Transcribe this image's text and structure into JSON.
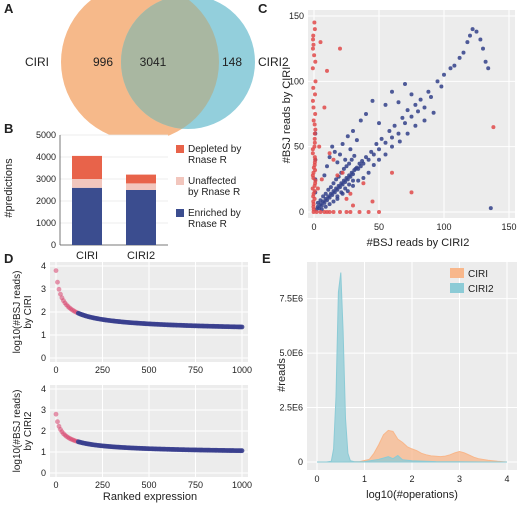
{
  "chart_data": [
    {
      "panel": "A",
      "type": "venn",
      "sets": [
        {
          "name": "CIRI",
          "color": "#f6b98a",
          "only": 996
        },
        {
          "name": "CIRI2",
          "color": "#93cfdc",
          "only": 148
        }
      ],
      "overlap": 3041,
      "overlap_color": "#a9b7a1"
    },
    {
      "panel": "B",
      "type": "bar",
      "stacked": true,
      "categories": [
        "CIRI",
        "CIRI2"
      ],
      "series": [
        {
          "name": "Enriched by\nRnase R",
          "color": "#3b4d8f",
          "values": [
            2600,
            2500
          ]
        },
        {
          "name": "Unaffected\nby Rnase R",
          "color": "#f2c6bd",
          "values": [
            400,
            300
          ]
        },
        {
          "name": "Depleted by\nRnase R",
          "color": "#e8634a",
          "values": [
            1050,
            400
          ]
        }
      ],
      "legend_order": [
        2,
        1,
        0
      ],
      "ylabel": "#predictions",
      "ylim": [
        0,
        5000
      ],
      "yticks": [
        0,
        1000,
        2000,
        3000,
        4000,
        5000
      ]
    },
    {
      "panel": "C",
      "type": "scatter",
      "xlabel": "#BSJ reads by CIRI2",
      "ylabel": "#BSJ reads by CIRI",
      "xlim": [
        0,
        150
      ],
      "ylim": [
        0,
        150
      ],
      "xticks": [
        0,
        50,
        100,
        150
      ],
      "yticks": [
        0,
        50,
        100,
        150
      ],
      "colors": {
        "blue": "#33418a",
        "red": "#e04a4a"
      },
      "blue_points": [
        [
          2,
          2
        ],
        [
          3,
          4
        ],
        [
          4,
          3
        ],
        [
          5,
          6
        ],
        [
          6,
          5
        ],
        [
          7,
          8
        ],
        [
          8,
          7
        ],
        [
          9,
          10
        ],
        [
          10,
          9
        ],
        [
          11,
          12
        ],
        [
          12,
          11
        ],
        [
          13,
          14
        ],
        [
          14,
          13
        ],
        [
          15,
          16
        ],
        [
          16,
          15
        ],
        [
          17,
          18
        ],
        [
          18,
          17
        ],
        [
          19,
          20
        ],
        [
          20,
          19
        ],
        [
          21,
          22
        ],
        [
          22,
          21
        ],
        [
          23,
          24
        ],
        [
          24,
          23
        ],
        [
          25,
          26
        ],
        [
          26,
          25
        ],
        [
          27,
          28
        ],
        [
          28,
          27
        ],
        [
          29,
          30
        ],
        [
          30,
          29
        ],
        [
          31,
          32
        ],
        [
          32,
          33
        ],
        [
          33,
          34
        ],
        [
          34,
          33
        ],
        [
          35,
          37
        ],
        [
          36,
          35
        ],
        [
          37,
          39
        ],
        [
          38,
          37
        ],
        [
          40,
          42
        ],
        [
          42,
          40
        ],
        [
          44,
          46
        ],
        [
          46,
          44
        ],
        [
          48,
          52
        ],
        [
          50,
          48
        ],
        [
          52,
          56
        ],
        [
          55,
          53
        ],
        [
          58,
          62
        ],
        [
          60,
          57
        ],
        [
          62,
          66
        ],
        [
          65,
          60
        ],
        [
          68,
          72
        ],
        [
          70,
          68
        ],
        [
          72,
          78
        ],
        [
          75,
          73
        ],
        [
          78,
          82
        ],
        [
          80,
          77
        ],
        [
          82,
          86
        ],
        [
          85,
          80
        ],
        [
          88,
          92
        ],
        [
          90,
          88
        ],
        [
          95,
          100
        ],
        [
          98,
          96
        ],
        [
          100,
          105
        ],
        [
          105,
          110
        ],
        [
          108,
          112
        ],
        [
          112,
          118
        ],
        [
          115,
          122
        ],
        [
          118,
          130
        ],
        [
          120,
          135
        ],
        [
          122,
          140
        ],
        [
          125,
          138
        ],
        [
          128,
          132
        ],
        [
          130,
          125
        ],
        [
          132,
          115
        ],
        [
          134,
          110
        ],
        [
          136,
          3
        ],
        [
          8,
          28
        ],
        [
          10,
          35
        ],
        [
          12,
          42
        ],
        [
          14,
          50
        ],
        [
          16,
          46
        ],
        [
          18,
          38
        ],
        [
          20,
          44
        ],
        [
          22,
          52
        ],
        [
          24,
          40
        ],
        [
          26,
          58
        ],
        [
          28,
          48
        ],
        [
          30,
          62
        ],
        [
          33,
          55
        ],
        [
          36,
          70
        ],
        [
          40,
          75
        ],
        [
          45,
          85
        ],
        [
          50,
          68
        ],
        [
          55,
          82
        ],
        [
          60,
          92
        ],
        [
          65,
          84
        ],
        [
          70,
          98
        ],
        [
          75,
          90
        ],
        [
          18,
          10
        ],
        [
          22,
          14
        ],
        [
          26,
          16
        ],
        [
          30,
          20
        ],
        [
          34,
          24
        ],
        [
          38,
          26
        ],
        [
          42,
          30
        ],
        [
          46,
          36
        ],
        [
          50,
          40
        ],
        [
          55,
          44
        ],
        [
          60,
          50
        ],
        [
          66,
          54
        ],
        [
          72,
          60
        ],
        [
          78,
          66
        ],
        [
          85,
          70
        ],
        [
          92,
          76
        ],
        [
          3,
          7
        ],
        [
          5,
          9
        ],
        [
          7,
          12
        ],
        [
          9,
          14
        ],
        [
          11,
          17
        ],
        [
          13,
          19
        ],
        [
          15,
          22
        ],
        [
          17,
          25
        ],
        [
          19,
          27
        ],
        [
          21,
          30
        ],
        [
          23,
          33
        ],
        [
          25,
          35
        ],
        [
          27,
          37
        ],
        [
          29,
          40
        ],
        [
          31,
          43
        ],
        [
          6,
          2
        ],
        [
          9,
          4
        ],
        [
          12,
          6
        ],
        [
          15,
          8
        ],
        [
          18,
          12
        ],
        [
          21,
          15
        ],
        [
          24,
          18
        ],
        [
          27,
          21
        ],
        [
          30,
          24
        ],
        [
          1,
          60
        ],
        [
          1,
          40
        ],
        [
          1,
          25
        ],
        [
          1,
          15
        ]
      ],
      "red_points": [
        [
          0,
          0
        ],
        [
          0,
          2
        ],
        [
          0,
          4
        ],
        [
          0,
          6
        ],
        [
          0,
          8
        ],
        [
          0,
          10
        ],
        [
          0,
          12
        ],
        [
          0,
          14
        ],
        [
          0,
          16
        ],
        [
          0,
          18
        ],
        [
          0,
          20
        ],
        [
          0,
          22
        ],
        [
          0,
          24
        ],
        [
          0,
          26
        ],
        [
          0,
          28
        ],
        [
          0,
          30
        ],
        [
          0,
          32
        ],
        [
          0,
          34
        ],
        [
          0,
          36
        ],
        [
          0,
          38
        ],
        [
          0,
          40
        ],
        [
          0,
          42
        ],
        [
          0,
          45
        ],
        [
          0,
          48
        ],
        [
          0,
          50
        ],
        [
          0,
          53
        ],
        [
          0,
          56
        ],
        [
          0,
          60
        ],
        [
          0,
          63
        ],
        [
          0,
          67
        ],
        [
          0,
          70
        ],
        [
          0,
          75
        ],
        [
          0,
          80
        ],
        [
          0,
          85
        ],
        [
          0,
          90
        ],
        [
          0,
          95
        ],
        [
          0,
          100
        ],
        [
          0,
          110
        ],
        [
          0,
          115
        ],
        [
          0,
          120
        ],
        [
          0,
          125
        ],
        [
          0,
          128
        ],
        [
          0,
          132
        ],
        [
          0,
          135
        ],
        [
          0,
          140
        ],
        [
          0,
          145
        ],
        [
          2,
          0
        ],
        [
          5,
          0
        ],
        [
          8,
          0
        ],
        [
          10,
          0
        ],
        [
          12,
          0
        ],
        [
          15,
          0
        ],
        [
          20,
          0
        ],
        [
          25,
          0
        ],
        [
          28,
          0
        ],
        [
          35,
          0
        ],
        [
          42,
          0
        ],
        [
          50,
          0
        ],
        [
          5,
          130
        ],
        [
          10,
          108
        ],
        [
          20,
          125
        ],
        [
          8,
          80
        ],
        [
          12,
          45
        ],
        [
          15,
          40
        ],
        [
          22,
          30
        ],
        [
          25,
          10
        ],
        [
          30,
          5
        ],
        [
          38,
          22
        ],
        [
          45,
          8
        ],
        [
          60,
          30
        ],
        [
          75,
          15
        ],
        [
          138,
          65
        ],
        [
          3,
          18
        ],
        [
          6,
          25
        ],
        [
          4,
          50
        ],
        [
          18,
          28
        ],
        [
          28,
          14
        ]
      ]
    },
    {
      "panel": "D",
      "type": "scatter",
      "subplots": [
        {
          "ylabel": "log10(#BSJ reads)\nby CIRI",
          "ylim": [
            0,
            4
          ],
          "yticks": [
            0,
            1,
            2,
            3,
            4
          ],
          "start": 3.8,
          "end": 1.05
        },
        {
          "ylabel": "log10(#BSJ reads)\nby CIRI2",
          "ylim": [
            0,
            4
          ],
          "yticks": [
            0,
            1,
            2,
            3,
            4
          ],
          "start": 2.8,
          "end": 0.85
        }
      ],
      "xlabel": "Ranked expression",
      "xlim": [
        0,
        1000
      ],
      "xticks": [
        0,
        250,
        500,
        750,
        1000
      ]
    },
    {
      "panel": "E",
      "type": "area",
      "xlabel": "log10(#operations)",
      "ylabel": "#reads",
      "xlim": [
        0,
        4
      ],
      "xticks": [
        0,
        1,
        2,
        3,
        4
      ],
      "ylim": [
        0,
        9000000
      ],
      "yticks": [
        0,
        2500000,
        5000000,
        7500000
      ],
      "ytick_labels": [
        "0",
        "2.5E6",
        "5.0E6",
        "7.5E6"
      ],
      "legend": "top-right",
      "series": [
        {
          "name": "CIRI",
          "color": "#f8b78b",
          "x": [
            0.0,
            0.5,
            0.9,
            1.1,
            1.2,
            1.3,
            1.4,
            1.5,
            1.6,
            1.7,
            1.8,
            1.9,
            2.0,
            2.1,
            2.2,
            2.3,
            2.4,
            2.5,
            2.6,
            2.7,
            2.8,
            2.9,
            3.0,
            3.1,
            3.2,
            3.3,
            3.4,
            3.6,
            3.8,
            4.0
          ],
          "y": [
            0,
            0,
            20000,
            120000,
            400000,
            800000,
            1250000,
            1450000,
            1400000,
            1050000,
            900000,
            700000,
            600000,
            520000,
            400000,
            330000,
            280000,
            260000,
            250000,
            270000,
            330000,
            420000,
            480000,
            420000,
            320000,
            220000,
            150000,
            80000,
            30000,
            0
          ]
        },
        {
          "name": "CIRI2",
          "color": "#8ccbd6",
          "x": [
            0.0,
            0.2,
            0.3,
            0.35,
            0.4,
            0.45,
            0.5,
            0.55,
            0.6,
            0.65,
            0.7,
            0.8,
            1.0,
            1.3,
            1.5,
            1.6,
            1.7,
            1.8,
            2.0,
            2.2,
            2.5,
            3.0,
            3.5,
            4.0
          ],
          "y": [
            0,
            0,
            30000,
            600000,
            3000000,
            7800000,
            8700000,
            6000000,
            2000000,
            400000,
            60000,
            10000,
            20000,
            120000,
            250000,
            150000,
            300000,
            100000,
            60000,
            40000,
            20000,
            10000,
            0,
            0
          ]
        }
      ]
    }
  ]
}
